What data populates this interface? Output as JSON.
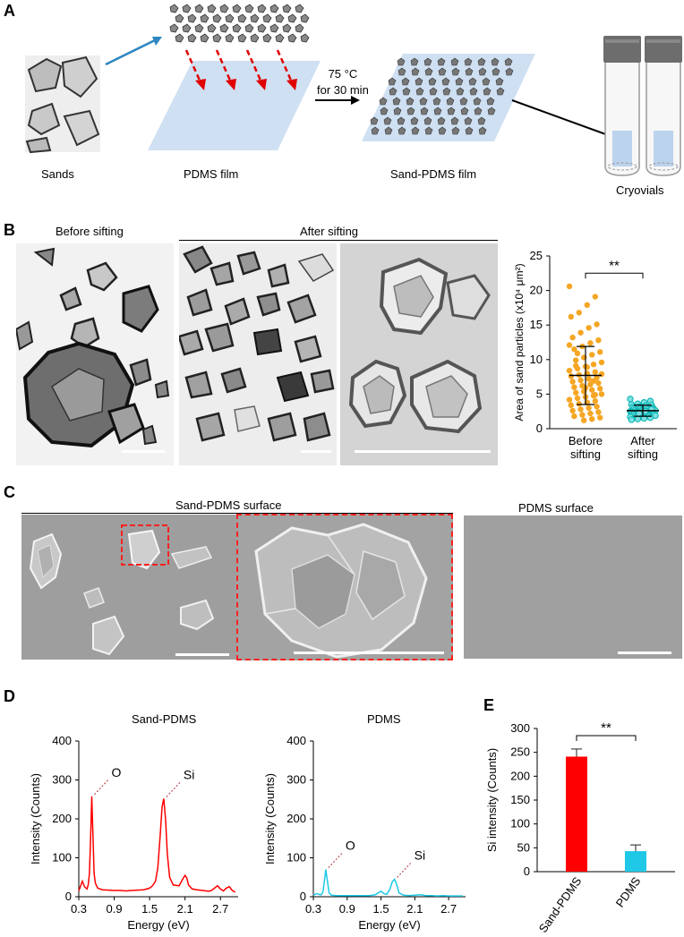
{
  "panels": {
    "a": {
      "label": "A",
      "temp_line1": "75 °C",
      "temp_line2": "for 30 min",
      "captions": [
        "Sands",
        "PDMS film",
        "Sand-PDMS film",
        "Cryovials"
      ]
    },
    "b": {
      "label": "B",
      "before_title": "Before sifting",
      "after_title": "After sifting"
    },
    "c": {
      "label": "C",
      "sand_pdms_title": "Sand-PDMS surface",
      "pdms_title": "PDMS surface"
    },
    "d": {
      "label": "D",
      "left_title": "Sand-PDMS",
      "right_title": "PDMS",
      "peak_o": "O",
      "peak_si": "Si"
    },
    "e": {
      "label": "E"
    }
  },
  "colors": {
    "sand_pdms": "#ff0000",
    "pdms": "#1ec8e6",
    "before_dots": "#f5a623",
    "after_dots": "#00b3b3",
    "arrow_blue": "#2e86c1",
    "film_blue": "#cfe0f3"
  },
  "chart_data": [
    {
      "id": "B",
      "type": "scatter",
      "ylabel": "Area of sand particles (x10⁴ μm²)",
      "ylim": [
        0,
        25
      ],
      "yticks": [
        0,
        5,
        10,
        15,
        20,
        25
      ],
      "categories": [
        "Before sifting",
        "After sifting"
      ],
      "category_lines": [
        [
          "Before",
          "sifting"
        ],
        [
          "After",
          "sifting"
        ]
      ],
      "means": [
        7.7,
        2.6
      ],
      "sd": [
        4.2,
        0.8
      ],
      "significance": "**",
      "series": [
        {
          "values": [
            20.6,
            19.1,
            17.9,
            16.8,
            16.2,
            15.1,
            14.6,
            13.9,
            13.2,
            12.8,
            12.4,
            11.9,
            11.5,
            11.1,
            10.7,
            10.3,
            9.9,
            9.6,
            9.3,
            9.0,
            8.7,
            8.4,
            8.2,
            8.0,
            7.8,
            7.6,
            7.4,
            7.2,
            7.0,
            6.8,
            6.6,
            6.4,
            6.2,
            6.0,
            5.8,
            5.6,
            5.4,
            5.2,
            5.0,
            4.8,
            4.6,
            4.4,
            4.2,
            4.0,
            3.8,
            3.6,
            3.4,
            3.2,
            3.0,
            2.8,
            2.6,
            2.4,
            2.2,
            2.0,
            1.8,
            1.6,
            1.4,
            1.2,
            9.1,
            7.9,
            6.9,
            5.9,
            10.9,
            12.1,
            4.9,
            8.9
          ]
        },
        {
          "values": [
            4.3,
            4.0,
            3.8,
            3.6,
            3.5,
            3.4,
            3.3,
            3.2,
            3.1,
            3.0,
            3.0,
            2.9,
            2.9,
            2.8,
            2.8,
            2.7,
            2.7,
            2.6,
            2.6,
            2.6,
            2.5,
            2.5,
            2.5,
            2.4,
            2.4,
            2.4,
            2.3,
            2.3,
            2.3,
            2.2,
            2.2,
            2.2,
            2.1,
            2.1,
            2.1,
            2.0,
            2.0,
            1.9,
            1.9,
            1.8,
            1.8,
            1.7,
            1.7,
            1.6,
            1.5,
            1.4,
            1.3,
            2.8,
            2.5,
            2.2
          ]
        }
      ]
    },
    {
      "id": "D-left",
      "type": "line",
      "title": "Sand-PDMS",
      "xlabel": "Energy (eV)",
      "ylabel": "Intensity (Counts)",
      "xlim": [
        0.3,
        3.0
      ],
      "xticks": [
        "0.3",
        "0.9",
        "1.5",
        "2.1",
        "2.7"
      ],
      "ylim": [
        0,
        400
      ],
      "yticks": [
        0,
        100,
        200,
        300,
        400
      ],
      "peaks": [
        {
          "label": "O",
          "x": 0.52,
          "y": 258
        },
        {
          "label": "Si",
          "x": 1.74,
          "y": 252
        }
      ],
      "series": [
        {
          "x": [
            0.3,
            0.36,
            0.4,
            0.44,
            0.46,
            0.48,
            0.5,
            0.52,
            0.54,
            0.56,
            0.58,
            0.62,
            0.7,
            0.8,
            0.9,
            1.0,
            1.1,
            1.2,
            1.3,
            1.4,
            1.5,
            1.55,
            1.6,
            1.64,
            1.68,
            1.71,
            1.74,
            1.77,
            1.8,
            1.84,
            1.9,
            2.0,
            2.06,
            2.1,
            2.13,
            2.16,
            2.22,
            2.3,
            2.4,
            2.5,
            2.55,
            2.6,
            2.65,
            2.7,
            2.75,
            2.8,
            2.85,
            2.9,
            2.95
          ],
          "y": [
            15,
            40,
            25,
            20,
            30,
            60,
            150,
            258,
            160,
            60,
            35,
            22,
            18,
            17,
            16,
            16,
            15,
            16,
            17,
            18,
            22,
            28,
            40,
            75,
            160,
            230,
            252,
            200,
            110,
            50,
            30,
            28,
            45,
            55,
            48,
            30,
            20,
            18,
            16,
            14,
            16,
            22,
            28,
            20,
            15,
            22,
            26,
            16,
            12
          ]
        }
      ]
    },
    {
      "id": "D-right",
      "type": "line",
      "title": "PDMS",
      "xlabel": "Energy (eV)",
      "ylabel": "Intensity (Counts)",
      "xlim": [
        0.3,
        3.0
      ],
      "xticks": [
        "0.3",
        "0.9",
        "1.5",
        "2.1",
        "2.7"
      ],
      "ylim": [
        0,
        400
      ],
      "yticks": [
        0,
        100,
        200,
        300,
        400
      ],
      "peaks": [
        {
          "label": "O",
          "x": 0.52,
          "y": 70
        },
        {
          "label": "Si",
          "x": 1.74,
          "y": 45
        }
      ],
      "series": [
        {
          "x": [
            0.3,
            0.36,
            0.4,
            0.44,
            0.47,
            0.5,
            0.52,
            0.55,
            0.58,
            0.62,
            0.7,
            0.8,
            0.9,
            1.0,
            1.1,
            1.2,
            1.3,
            1.4,
            1.45,
            1.5,
            1.55,
            1.6,
            1.66,
            1.7,
            1.74,
            1.78,
            1.82,
            1.9,
            2.0,
            2.1,
            2.2,
            2.3,
            2.4,
            2.5,
            2.6,
            2.7,
            2.8,
            2.9,
            2.95
          ],
          "y": [
            4,
            8,
            6,
            5,
            12,
            45,
            70,
            40,
            10,
            4,
            3,
            3,
            3,
            3,
            3,
            3,
            3,
            5,
            10,
            14,
            8,
            6,
            20,
            38,
            45,
            30,
            10,
            4,
            3,
            4,
            5,
            3,
            3,
            2,
            3,
            2,
            2,
            2,
            2
          ]
        }
      ]
    },
    {
      "id": "E",
      "type": "bar",
      "ylabel": "Si intensity (Counts)",
      "ylim": [
        0,
        300
      ],
      "yticks": [
        0,
        50,
        100,
        150,
        200,
        250,
        300
      ],
      "categories": [
        "Sand-PDMS",
        "PDMS"
      ],
      "values": [
        241,
        43
      ],
      "errors": [
        16,
        13
      ],
      "significance": "**"
    }
  ]
}
